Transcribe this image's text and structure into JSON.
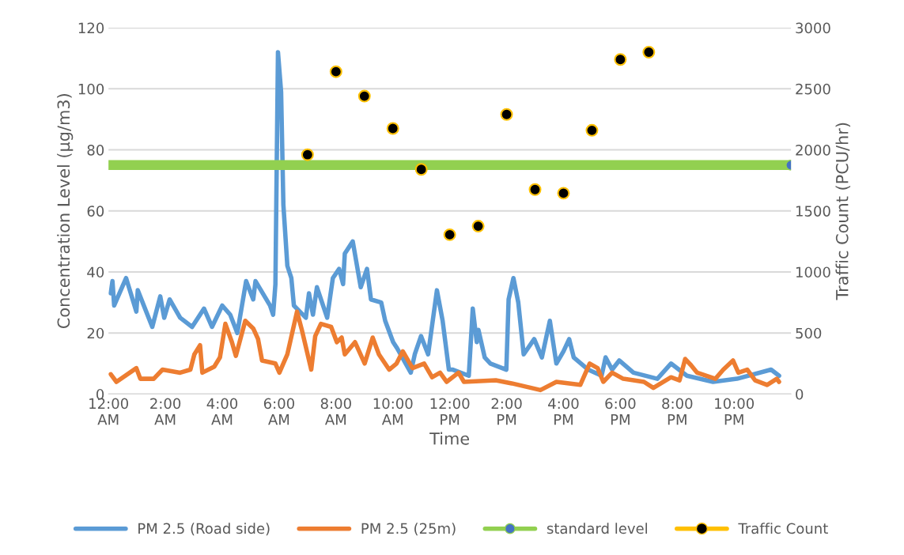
{
  "chart_data": {
    "type": "line",
    "xlabel": "Time",
    "ylabel": "Concentration Level (µg/m3)",
    "y2label": "Traffic Count (PCU/hr)",
    "xlim": [
      0,
      24
    ],
    "xticks": [
      {
        "value": 0,
        "label": "12:00\nAM"
      },
      {
        "value": 2,
        "label": "2:00\nAM"
      },
      {
        "value": 4,
        "label": "4:00\nAM"
      },
      {
        "value": 6,
        "label": "6:00\nAM"
      },
      {
        "value": 8,
        "label": "8:00\nAM"
      },
      {
        "value": 10,
        "label": "10:00\nAM"
      },
      {
        "value": 12,
        "label": "12:00\nPM"
      },
      {
        "value": 14,
        "label": "2:00\nPM"
      },
      {
        "value": 16,
        "label": "4:00\nPM"
      },
      {
        "value": 18,
        "label": "6:00\nPM"
      },
      {
        "value": 20,
        "label": "8:00\nPM"
      },
      {
        "value": 22,
        "label": "10:00\nPM"
      }
    ],
    "ylim": [
      0,
      120
    ],
    "yticks": [
      0,
      20,
      40,
      60,
      80,
      100,
      120
    ],
    "y2lim": [
      0,
      3000
    ],
    "y2ticks": [
      0,
      500,
      1000,
      1500,
      2000,
      2500,
      3000
    ],
    "grid": "y",
    "legend": "bottom",
    "series": [
      {
        "name": "PM 2.5 (Road side)",
        "color": "#5b9bd5",
        "marker": "none",
        "x": [
          0.08,
          0.14,
          0.2,
          0.62,
          0.98,
          1.03,
          1.54,
          1.82,
          1.96,
          2.15,
          2.52,
          2.94,
          3.36,
          3.64,
          4.0,
          4.28,
          4.53,
          4.84,
          5.09,
          5.17,
          5.68,
          5.79,
          5.87,
          5.96,
          6.07,
          6.15,
          6.29,
          6.43,
          6.52,
          6.94,
          7.05,
          7.19,
          7.33,
          7.69,
          7.89,
          8.11,
          8.25,
          8.31,
          8.59,
          8.87,
          9.09,
          9.23,
          9.59,
          9.73,
          10.01,
          10.15,
          10.63,
          10.77,
          10.99,
          11.24,
          11.55,
          11.75,
          11.97,
          12.11,
          12.67,
          12.81,
          12.95,
          13.01,
          13.23,
          13.43,
          13.99,
          14.07,
          14.24,
          14.41,
          14.6,
          14.97,
          15.24,
          15.52,
          15.75,
          16.0,
          16.2,
          16.36,
          16.87,
          17.34,
          17.48,
          17.71,
          17.96,
          18.46,
          19.3,
          19.78,
          20.34,
          21.26,
          22.1,
          23.3,
          23.58
        ],
        "values": [
          33,
          37,
          29,
          38,
          27,
          34,
          22,
          32,
          25,
          31,
          25,
          22,
          28,
          22,
          29,
          26,
          20,
          37,
          31,
          37,
          29,
          26,
          36,
          112,
          99,
          62,
          42,
          38,
          29,
          25,
          33,
          26,
          35,
          25,
          38,
          41,
          36,
          46,
          50,
          35,
          41,
          31,
          30,
          24,
          17,
          15,
          7,
          13,
          19,
          13,
          34,
          24,
          8,
          8,
          6,
          28,
          17,
          21,
          12,
          10,
          8,
          31,
          38,
          30,
          13,
          18,
          12,
          24,
          10,
          14,
          18,
          12,
          8,
          6,
          12,
          8,
          11,
          7,
          5,
          10,
          6,
          4,
          5,
          8,
          6
        ]
      },
      {
        "name": "PM 2.5 (25m)",
        "color": "#ed7d31",
        "marker": "none",
        "x": [
          0.08,
          0.28,
          0.98,
          1.12,
          1.59,
          1.9,
          2.52,
          2.88,
          3.02,
          3.22,
          3.3,
          3.72,
          3.92,
          4.11,
          4.34,
          4.48,
          4.81,
          5.09,
          5.26,
          5.4,
          5.87,
          6.01,
          6.29,
          6.63,
          6.8,
          7.13,
          7.27,
          7.47,
          7.83,
          8.03,
          8.2,
          8.31,
          8.67,
          9.01,
          9.29,
          9.51,
          9.87,
          10.13,
          10.35,
          10.69,
          11.1,
          11.38,
          11.66,
          11.89,
          12.31,
          12.5,
          13.62,
          14.18,
          15.19,
          15.75,
          16.59,
          16.92,
          17.2,
          17.4,
          17.71,
          18.1,
          18.83,
          19.16,
          19.78,
          20.08,
          20.28,
          20.48,
          20.7,
          21.34,
          21.62,
          21.96,
          22.15,
          22.46,
          22.74,
          23.16,
          23.5,
          23.58
        ],
        "values": [
          6.5,
          4,
          8.5,
          5,
          5,
          8,
          7,
          8,
          13,
          16,
          7,
          9,
          12,
          23,
          17,
          12.5,
          24,
          21.5,
          18,
          11,
          10,
          7,
          13,
          27,
          21,
          8,
          19,
          23,
          22,
          17,
          18.5,
          13,
          17,
          10,
          18.5,
          13,
          8,
          10,
          14,
          8.5,
          10,
          5.5,
          7,
          4,
          7,
          4,
          4.5,
          3.5,
          1.3,
          4,
          3,
          10,
          8.5,
          4,
          7,
          5,
          4,
          2,
          5.5,
          4.5,
          11.5,
          9.5,
          7,
          5,
          8,
          11,
          7,
          8,
          4.5,
          3,
          5,
          4
        ]
      },
      {
        "name": "standard level",
        "type": "line",
        "color": "#92d050",
        "marker": "circle",
        "x": [
          0,
          24
        ],
        "values": [
          75,
          75
        ]
      },
      {
        "name": "Traffic Count",
        "type": "scatter",
        "axis": "y2",
        "color": "#ffc000",
        "marker": "circle",
        "x": [
          7,
          8,
          9,
          10,
          11,
          12,
          13,
          14,
          15,
          16,
          17,
          18,
          19
        ],
        "values": [
          1960,
          2640,
          2440,
          2175,
          1840,
          1305,
          1375,
          2290,
          1675,
          1645,
          2160,
          2740,
          2800
        ]
      }
    ]
  }
}
